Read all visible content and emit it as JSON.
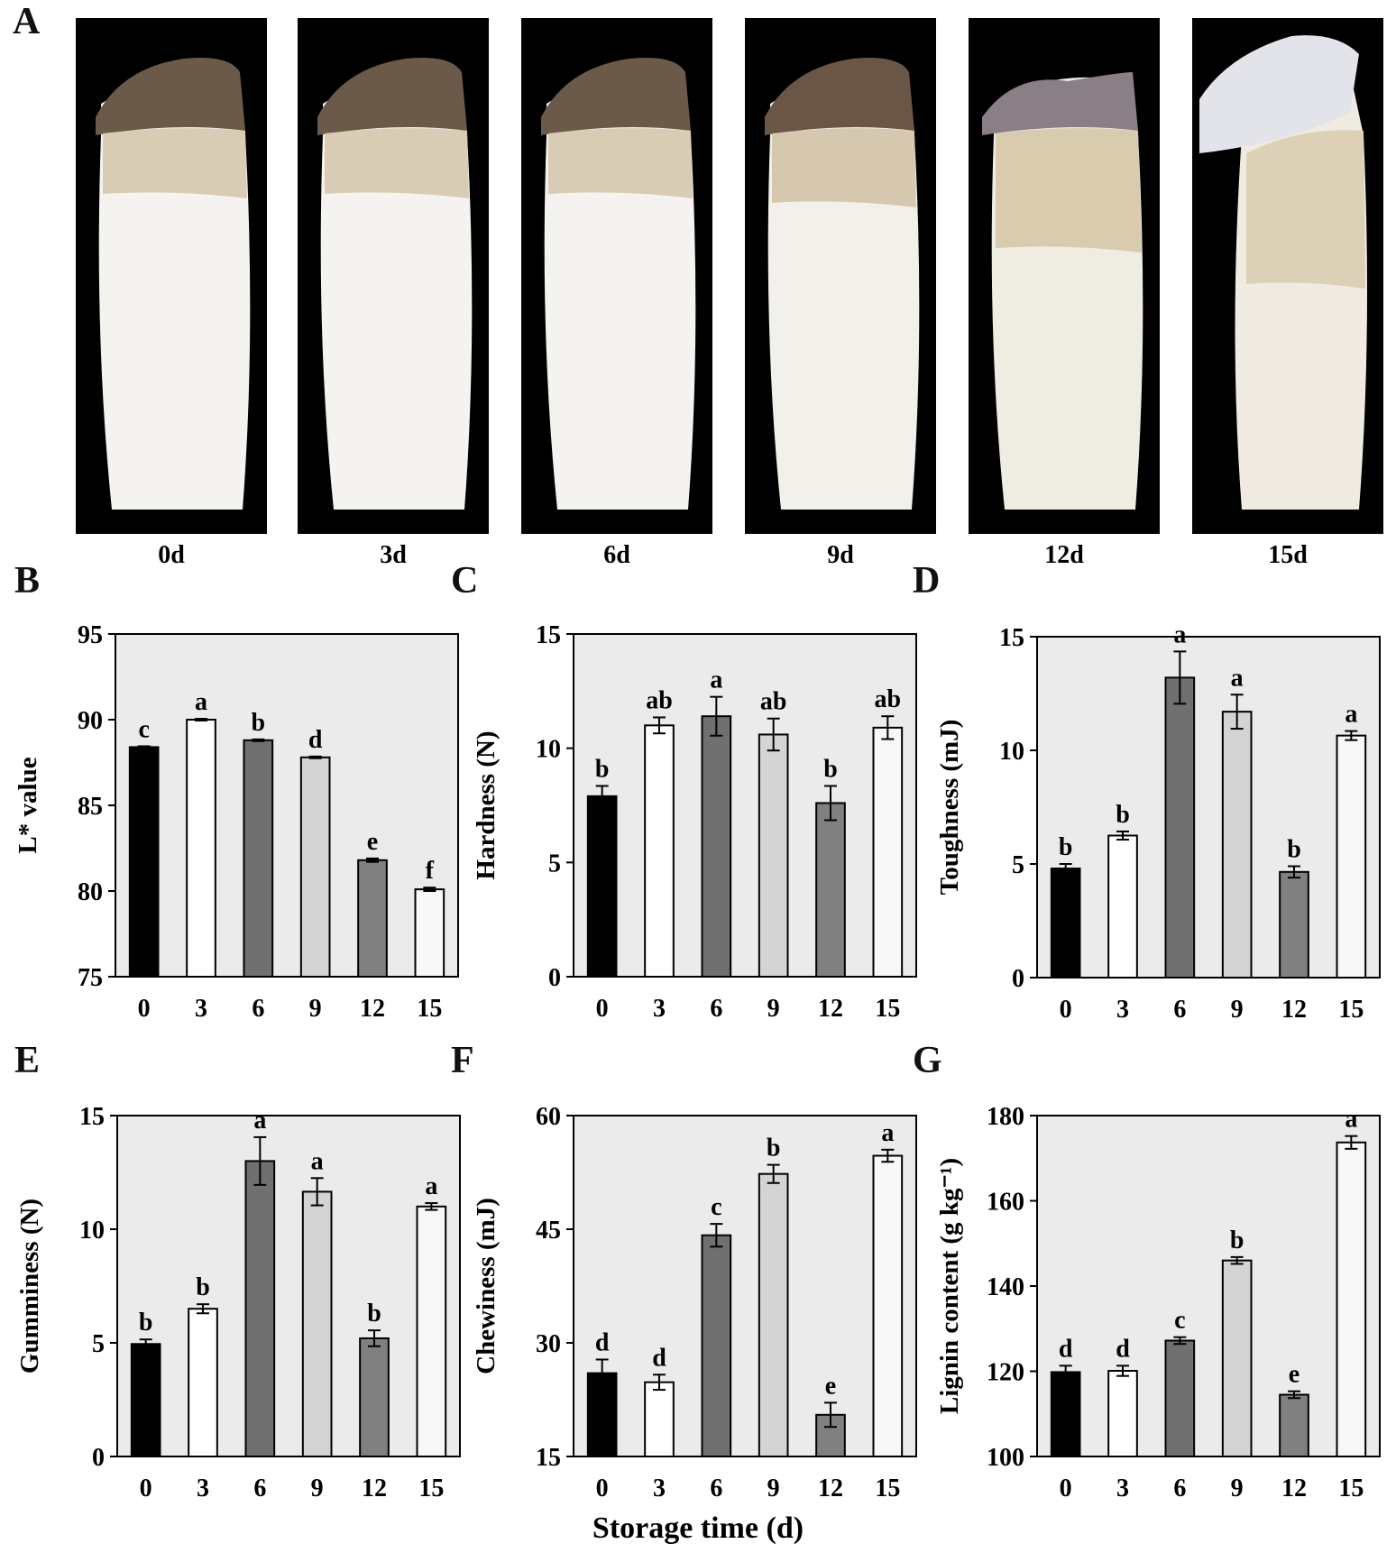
{
  "panels": {
    "a": "A",
    "b": "B",
    "c": "C",
    "d": "D",
    "e": "E",
    "f": "F",
    "g": "G"
  },
  "photo_labels": [
    "0d",
    "3d",
    "6d",
    "9d",
    "12d",
    "15d"
  ],
  "x_axis_title": "Storage time (d)",
  "colors": {
    "bar_fills": [
      "#000000",
      "#ffffff",
      "#707070",
      "#d4d4d4",
      "#808080",
      "#f8f8f8"
    ],
    "plot_bg": "#ebebeb"
  },
  "chart_data": [
    {
      "panel": "B",
      "type": "bar",
      "ylabel": "L* value",
      "categories": [
        "0",
        "3",
        "6",
        "9",
        "12",
        "15"
      ],
      "values": [
        88.4,
        90.0,
        88.8,
        87.8,
        81.8,
        80.1
      ],
      "errors": [
        0.05,
        0.05,
        0.05,
        0.05,
        0.1,
        0.1
      ],
      "letters": [
        "c",
        "a",
        "b",
        "d",
        "e",
        "f"
      ],
      "ylim": [
        75,
        95
      ],
      "yticks": [
        75,
        80,
        85,
        90,
        95
      ]
    },
    {
      "panel": "C",
      "type": "bar",
      "ylabel": "Hardness (N)",
      "categories": [
        "0",
        "3",
        "6",
        "9",
        "12",
        "15"
      ],
      "values": [
        7.9,
        11.0,
        11.4,
        10.6,
        7.6,
        10.9
      ],
      "errors": [
        0.45,
        0.35,
        0.85,
        0.7,
        0.75,
        0.5
      ],
      "letters": [
        "b",
        "ab",
        "a",
        "ab",
        "b",
        "ab"
      ],
      "ylim": [
        0,
        15
      ],
      "yticks": [
        0,
        5,
        10,
        15
      ]
    },
    {
      "panel": "D",
      "type": "bar",
      "ylabel": "Toughness (mJ)",
      "categories": [
        "0",
        "3",
        "6",
        "9",
        "12",
        "15"
      ],
      "values": [
        4.8,
        6.25,
        13.2,
        11.7,
        4.65,
        10.65
      ],
      "errors": [
        0.2,
        0.18,
        1.15,
        0.75,
        0.25,
        0.2
      ],
      "letters": [
        "b",
        "b",
        "a",
        "a",
        "b",
        "a"
      ],
      "ylim": [
        0,
        15
      ],
      "yticks": [
        0,
        5,
        10,
        15
      ]
    },
    {
      "panel": "E",
      "type": "bar",
      "ylabel": "Gumminess (N)",
      "categories": [
        "0",
        "3",
        "6",
        "9",
        "12",
        "15"
      ],
      "values": [
        4.95,
        6.5,
        13.0,
        11.65,
        5.2,
        11.0
      ],
      "errors": [
        0.2,
        0.2,
        1.05,
        0.6,
        0.35,
        0.15
      ],
      "letters": [
        "b",
        "b",
        "a",
        "a",
        "b",
        "a"
      ],
      "ylim": [
        0,
        15
      ],
      "yticks": [
        0,
        5,
        10,
        15
      ]
    },
    {
      "panel": "F",
      "type": "bar",
      "ylabel": "Chewiness (mJ)",
      "categories": [
        "0",
        "3",
        "6",
        "9",
        "12",
        "15"
      ],
      "values": [
        26.0,
        24.8,
        44.2,
        52.3,
        20.5,
        54.7
      ],
      "errors": [
        1.8,
        1.0,
        1.5,
        1.2,
        1.6,
        0.8
      ],
      "letters": [
        "d",
        "d",
        "c",
        "b",
        "e",
        "a"
      ],
      "ylim": [
        15,
        60
      ],
      "yticks": [
        15,
        30,
        45,
        60
      ]
    },
    {
      "panel": "G",
      "type": "bar",
      "ylabel": "Lignin content (g kg⁻¹)",
      "categories": [
        "0",
        "3",
        "6",
        "9",
        "12",
        "15"
      ],
      "values": [
        119.8,
        120.1,
        127.2,
        146.0,
        114.5,
        173.7
      ],
      "errors": [
        1.5,
        1.2,
        0.8,
        0.8,
        0.8,
        1.5
      ],
      "letters": [
        "d",
        "d",
        "c",
        "b",
        "e",
        "a"
      ],
      "ylim": [
        100,
        180
      ],
      "yticks": [
        100,
        120,
        140,
        160,
        180
      ]
    }
  ]
}
